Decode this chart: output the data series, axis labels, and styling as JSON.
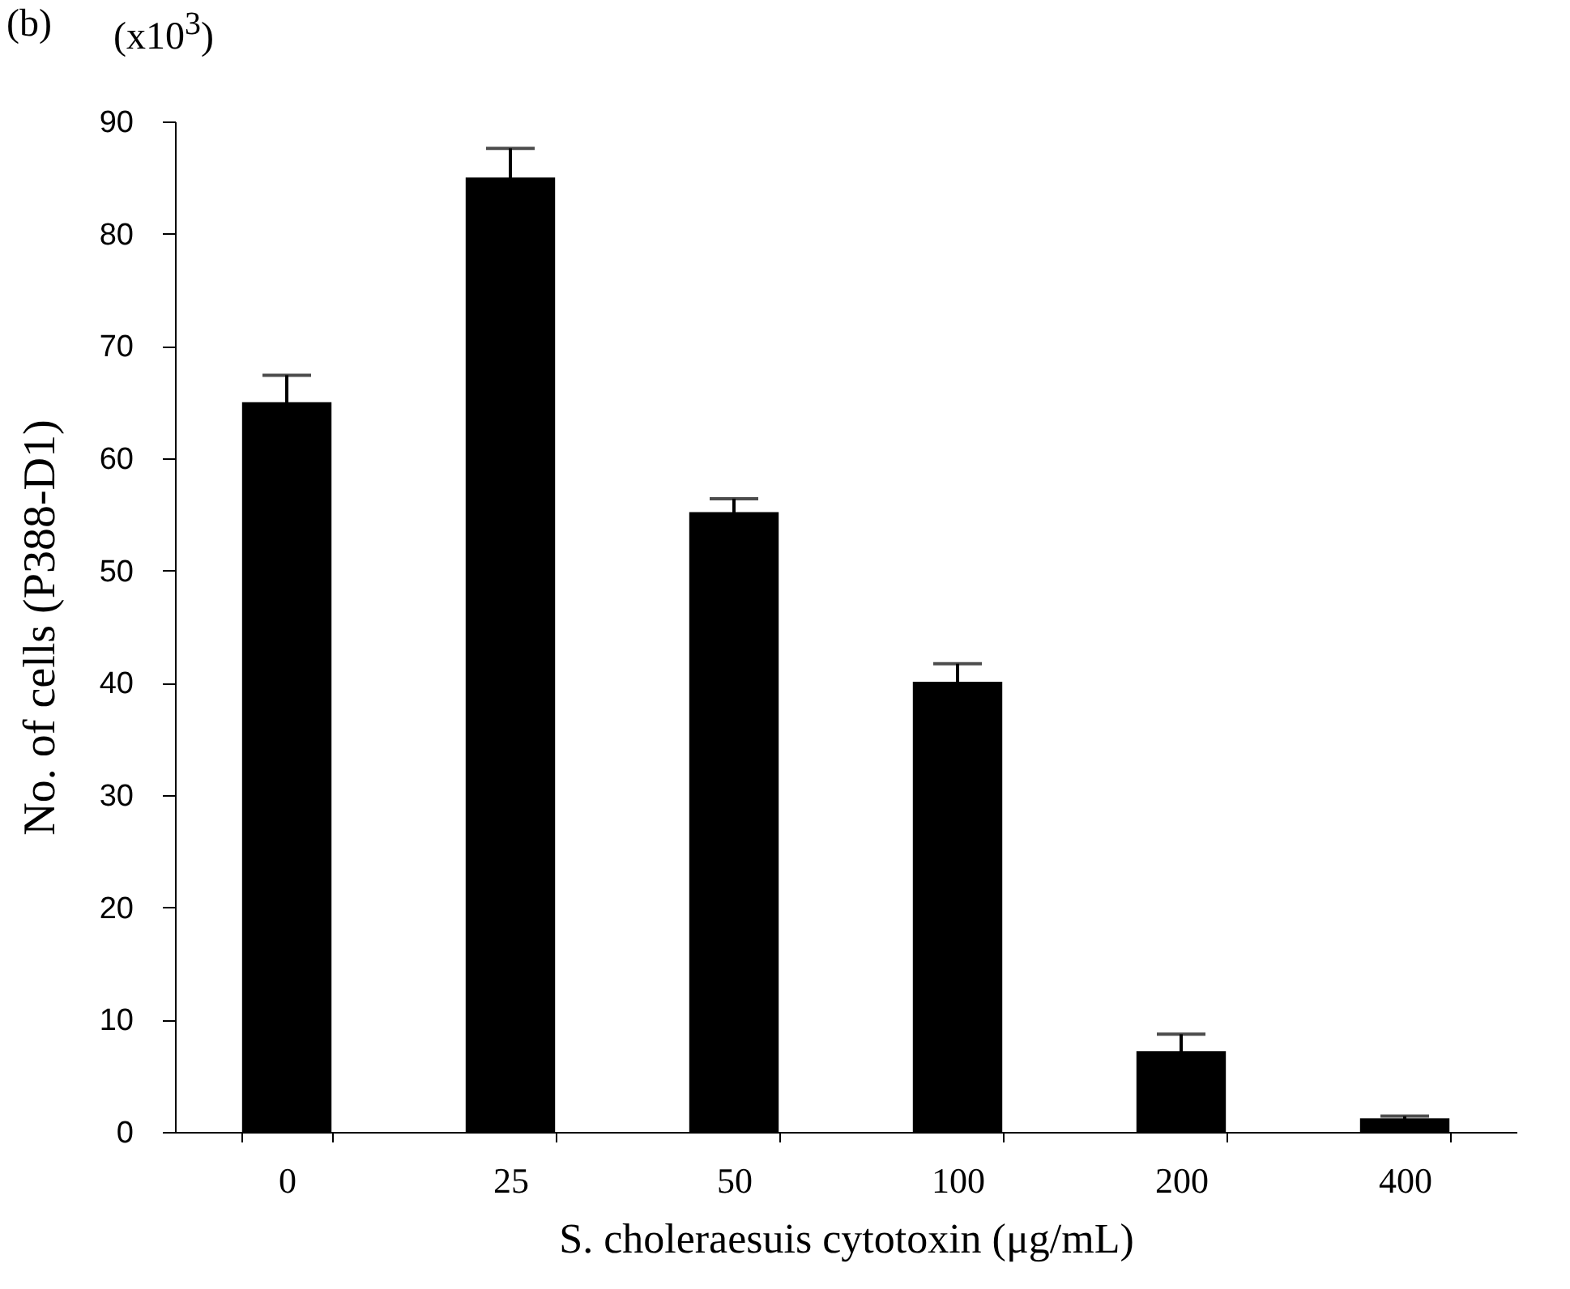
{
  "chart_data": {
    "type": "bar",
    "xlabel": "S. choleraesuis cytotoxin (μg/mL)",
    "ylabel": "No. of cells (P388-D1)",
    "categories": [
      "0",
      "25",
      "50",
      "100",
      "200",
      "400"
    ],
    "values": [
      65,
      85,
      55.2,
      40.1,
      7.2,
      1.2
    ],
    "errors": [
      2.4,
      2.6,
      1.2,
      1.6,
      1.5,
      0.2
    ],
    "color": "#000000",
    "ylim": [
      0,
      90
    ],
    "yticks": [
      0,
      10,
      20,
      30,
      40,
      50,
      60,
      70,
      80,
      90
    ],
    "annotations": [
      "(b)",
      "(x10$^{3}$)"
    ]
  }
}
